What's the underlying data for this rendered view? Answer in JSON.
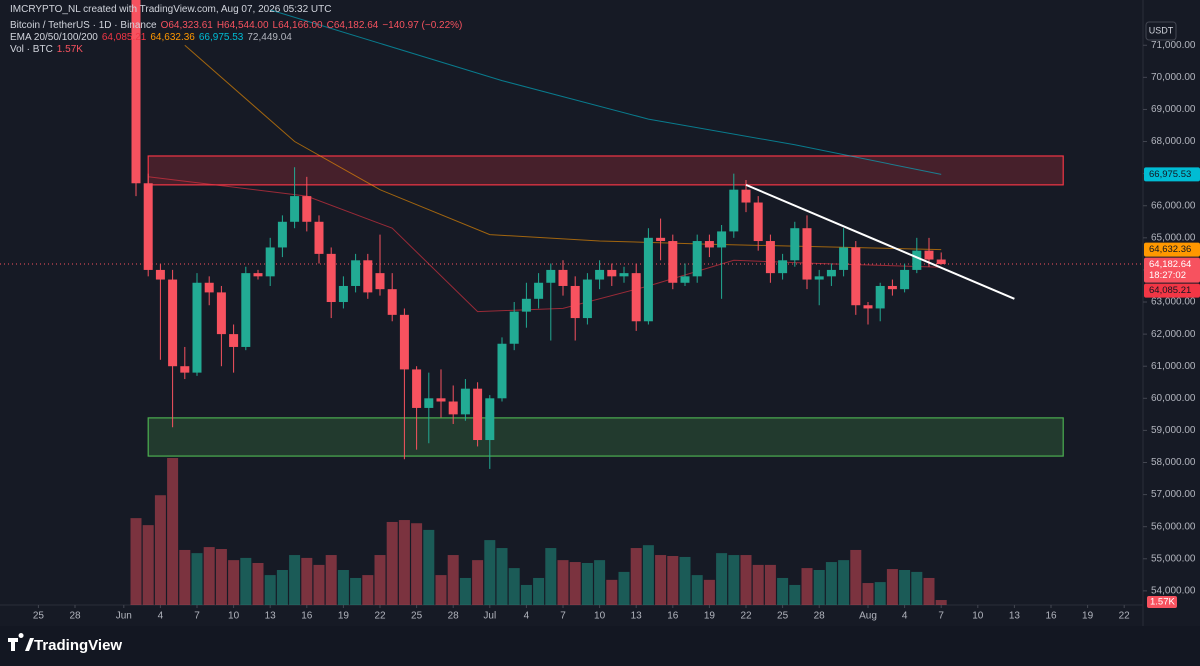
{
  "chart_data": {
    "type": "candlestick",
    "watermark": "IMCRYPTO_NL created with TradingView.com, Aug 07, 2026 05:32 UTC",
    "symbol": "Bitcoin / TetherUS · 1D · Binance",
    "ohlc_text": [
      "O64,323.61",
      "H64,544.00",
      "L64,166.00",
      "C64,182.64",
      "−140.97 (−0.22%)"
    ],
    "ema_label": "EMA 20/50/100/200",
    "volume_title": "Vol · BTC",
    "volume_label": "1.57K",
    "currency": "USDT",
    "brand": "TradingView",
    "countdown": "18:27:02",
    "up_color": "#22ab94",
    "down_color": "#f7525f",
    "categories": [
      "2026-06-02",
      "2026-06-03",
      "2026-06-04",
      "2026-06-05",
      "2026-06-06",
      "2026-06-07",
      "2026-06-08",
      "2026-06-09",
      "2026-06-10",
      "2026-06-11",
      "2026-06-12",
      "2026-06-13",
      "2026-06-14",
      "2026-06-15",
      "2026-06-16",
      "2026-06-17",
      "2026-06-18",
      "2026-06-19",
      "2026-06-20",
      "2026-06-21",
      "2026-06-22",
      "2026-06-23",
      "2026-06-24",
      "2026-06-25",
      "2026-06-26",
      "2026-06-27",
      "2026-06-28",
      "2026-06-29",
      "2026-06-30",
      "2026-07-01",
      "2026-07-02",
      "2026-07-03",
      "2026-07-04",
      "2026-07-05",
      "2026-07-06",
      "2026-07-07",
      "2026-07-08",
      "2026-07-09",
      "2026-07-10",
      "2026-07-11",
      "2026-07-12",
      "2026-07-13",
      "2026-07-14",
      "2026-07-15",
      "2026-07-16",
      "2026-07-17",
      "2026-07-18",
      "2026-07-19",
      "2026-07-20",
      "2026-07-21",
      "2026-07-22",
      "2026-07-23",
      "2026-07-24",
      "2026-07-25",
      "2026-07-26",
      "2026-07-27",
      "2026-07-28",
      "2026-07-29",
      "2026-07-30",
      "2026-07-31",
      "2026-08-01",
      "2026-08-02",
      "2026-08-03",
      "2026-08-04",
      "2026-08-05",
      "2026-08-06",
      "2026-08-07"
    ],
    "open": [
      73400,
      66700,
      64000,
      63700,
      61000,
      60800,
      63600,
      63300,
      62000,
      61600,
      63900,
      63800,
      64700,
      65500,
      66300,
      65500,
      64500,
      63000,
      63500,
      64300,
      63900,
      63400,
      62600,
      60900,
      59700,
      60000,
      59900,
      59500,
      60300,
      58700,
      60000,
      61700,
      62700,
      63100,
      63600,
      64000,
      63500,
      62500,
      63700,
      64000,
      63800,
      63900,
      62400,
      65000,
      64900,
      63600,
      63800,
      64900,
      64700,
      65200,
      66500,
      66100,
      64900,
      63900,
      64300,
      65300,
      63700,
      63800,
      64000,
      64700,
      62900,
      62800,
      63500,
      63400,
      64000,
      64600,
      64323.61
    ],
    "high": [
      73400,
      67000,
      64200,
      64000,
      61600,
      63900,
      63800,
      63500,
      62300,
      64100,
      64000,
      65000,
      65700,
      67200,
      66900,
      65700,
      64700,
      63800,
      64500,
      64500,
      65100,
      63900,
      62800,
      61000,
      60800,
      60900,
      60400,
      60600,
      60500,
      60100,
      61900,
      63000,
      63600,
      63900,
      64200,
      64300,
      63800,
      63900,
      64300,
      64200,
      64100,
      64200,
      65300,
      65600,
      65100,
      64200,
      65100,
      65100,
      65400,
      67000,
      66800,
      66300,
      65100,
      64500,
      65500,
      65700,
      64000,
      64200,
      65300,
      64900,
      63000,
      63600,
      63700,
      64200,
      65000,
      65000,
      64544
    ],
    "low": [
      66300,
      63800,
      61200,
      59100,
      60600,
      60700,
      62900,
      61000,
      60800,
      61500,
      63700,
      63500,
      64400,
      65300,
      65200,
      64200,
      62500,
      62800,
      63300,
      63100,
      63200,
      62400,
      58100,
      58400,
      58600,
      59400,
      59200,
      59300,
      58500,
      57800,
      59900,
      61500,
      62200,
      62800,
      61800,
      63200,
      61800,
      62300,
      63400,
      63500,
      63600,
      62100,
      62300,
      64300,
      63400,
      63500,
      63600,
      64400,
      63100,
      65000,
      65800,
      64600,
      63600,
      63700,
      64100,
      63400,
      62900,
      63500,
      63800,
      62600,
      62300,
      62400,
      63200,
      63300,
      63900,
      64100,
      64166
    ],
    "close": [
      66700,
      64000,
      63700,
      61000,
      60800,
      63600,
      63300,
      62000,
      61600,
      63900,
      63800,
      64700,
      65500,
      66300,
      65500,
      64500,
      63000,
      63500,
      64300,
      63300,
      63400,
      62600,
      60900,
      59700,
      60000,
      59900,
      59500,
      60300,
      58700,
      60000,
      61700,
      62700,
      63100,
      63600,
      64000,
      63500,
      62500,
      63700,
      64000,
      63800,
      63900,
      62400,
      65000,
      64900,
      63600,
      63800,
      64900,
      64700,
      65200,
      66500,
      66100,
      64900,
      63900,
      64300,
      65300,
      63700,
      63800,
      64000,
      64700,
      62900,
      62800,
      63500,
      63400,
      64000,
      64600,
      64323.61,
      64182.64
    ],
    "volume": [
      27300,
      25100,
      34500,
      46200,
      17300,
      16300,
      18200,
      17600,
      14100,
      14800,
      13200,
      9400,
      11000,
      15700,
      14800,
      12600,
      15700,
      11000,
      8500,
      9400,
      15700,
      26100,
      26700,
      25700,
      23600,
      9400,
      15700,
      8500,
      14100,
      20400,
      17900,
      11600,
      6300,
      8500,
      17900,
      14100,
      13500,
      13200,
      14100,
      7900,
      10400,
      17900,
      18800,
      15700,
      15400,
      15100,
      9400,
      7900,
      16300,
      15700,
      15700,
      12600,
      12600,
      8500,
      6300,
      11600,
      11000,
      13500,
      14100,
      17300,
      6900,
      7200,
      11300,
      11000,
      10400,
      8500,
      1570
    ],
    "ema": [
      {
        "color": "#f23645",
        "last_label": "64,085.21",
        "x": [
          "2026-06-03",
          "2026-06-16",
          "2026-06-23",
          "2026-06-30",
          "2026-07-07",
          "2026-07-14",
          "2026-07-21",
          "2026-07-28",
          "2026-08-07"
        ],
        "values": [
          66900,
          66300,
          65300,
          62700,
          62800,
          63500,
          64300,
          64200,
          64085.21
        ]
      },
      {
        "color": "#ff9800",
        "last_label": "64,632.36",
        "x": [
          "2026-06-06",
          "2026-06-15",
          "2026-06-22",
          "2026-07-01",
          "2026-07-10",
          "2026-07-19",
          "2026-08-07"
        ],
        "values": [
          71000,
          68000,
          66500,
          65100,
          64900,
          64800,
          64632.36
        ]
      },
      {
        "color": "#00bcd4",
        "last_label": "66,975.53",
        "x": [
          "2026-06-13",
          "2026-07-02",
          "2026-07-14",
          "2026-07-26",
          "2026-08-07"
        ],
        "values": [
          72100,
          69900,
          68700,
          67900,
          66975.53
        ]
      },
      {
        "color": "#b2b5be",
        "last_label": "72,449.04"
      }
    ],
    "zones": [
      {
        "color": "#f23645",
        "low": 66650,
        "high": 67550,
        "x": [
          "2026-06-03",
          "2026-08-17"
        ]
      },
      {
        "color": "#4caf50",
        "low": 58200,
        "high": 59390,
        "x": [
          "2026-06-03",
          "2026-08-17"
        ]
      }
    ],
    "trendline": {
      "color": "#ffffff",
      "x": [
        "2026-07-22",
        "2026-08-13"
      ],
      "values": [
        66650,
        63100
      ]
    },
    "ylim": [
      53560,
      72410
    ],
    "yticks": [
      {
        "value": 54000,
        "label": "54,000.00"
      },
      {
        "value": 55000,
        "label": "55,000.00"
      },
      {
        "value": 56000,
        "label": "56,000.00"
      },
      {
        "value": 57000,
        "label": "57,000.00"
      },
      {
        "value": 58000,
        "label": "58,000.00"
      },
      {
        "value": 59000,
        "label": "59,000.00"
      },
      {
        "value": 60000,
        "label": "60,000.00"
      },
      {
        "value": 61000,
        "label": "61,000.00"
      },
      {
        "value": 62000,
        "label": "62,000.00"
      },
      {
        "value": 63000,
        "label": "63,000.00"
      },
      {
        "value": 64000,
        "label": "64,000.00"
      },
      {
        "value": 65000,
        "label": "65,000.00"
      },
      {
        "value": 66000,
        "label": "66,000.00"
      },
      {
        "value": 67000,
        "label": "67,000.00"
      },
      {
        "value": 68000,
        "label": "68,000.00"
      },
      {
        "value": 69000,
        "label": "69,000.00"
      },
      {
        "value": 70000,
        "label": "70,000.00"
      },
      {
        "value": 71000,
        "label": "71,000.00"
      }
    ],
    "xticks": [
      {
        "value": "2026-05-25",
        "label": "25"
      },
      {
        "value": "2026-05-28",
        "label": "28"
      },
      {
        "value": "2026-06-01",
        "label": "Jun"
      },
      {
        "value": "2026-06-04",
        "label": "4"
      },
      {
        "value": "2026-06-07",
        "label": "7"
      },
      {
        "value": "2026-06-10",
        "label": "10"
      },
      {
        "value": "2026-06-13",
        "label": "13"
      },
      {
        "value": "2026-06-16",
        "label": "16"
      },
      {
        "value": "2026-06-19",
        "label": "19"
      },
      {
        "value": "2026-06-22",
        "label": "22"
      },
      {
        "value": "2026-06-25",
        "label": "25"
      },
      {
        "value": "2026-06-28",
        "label": "28"
      },
      {
        "value": "2026-07-01",
        "label": "Jul"
      },
      {
        "value": "2026-07-04",
        "label": "4"
      },
      {
        "value": "2026-07-07",
        "label": "7"
      },
      {
        "value": "2026-07-10",
        "label": "10"
      },
      {
        "value": "2026-07-13",
        "label": "13"
      },
      {
        "value": "2026-07-16",
        "label": "16"
      },
      {
        "value": "2026-07-19",
        "label": "19"
      },
      {
        "value": "2026-07-22",
        "label": "22"
      },
      {
        "value": "2026-07-25",
        "label": "25"
      },
      {
        "value": "2026-07-28",
        "label": "28"
      },
      {
        "value": "2026-08-01",
        "label": "Aug"
      },
      {
        "value": "2026-08-04",
        "label": "4"
      },
      {
        "value": "2026-08-07",
        "label": "7"
      },
      {
        "value": "2026-08-10",
        "label": "10"
      },
      {
        "value": "2026-08-13",
        "label": "13"
      },
      {
        "value": "2026-08-16",
        "label": "16"
      },
      {
        "value": "2026-08-19",
        "label": "19"
      },
      {
        "value": "2026-08-22",
        "label": "22"
      }
    ]
  }
}
